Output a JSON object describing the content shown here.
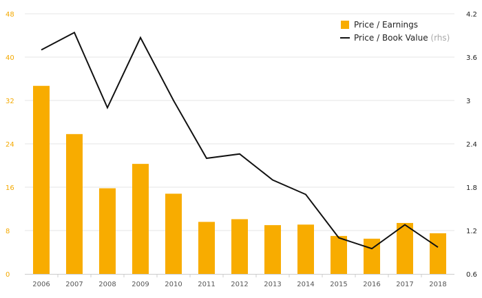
{
  "chart_data": {
    "type": "bar",
    "categories": [
      "2006",
      "2007",
      "2008",
      "2009",
      "2010",
      "2011",
      "2012",
      "2013",
      "2014",
      "2015",
      "2016",
      "2017",
      "2018"
    ],
    "series": [
      {
        "name": "Price / Earnings",
        "chart_type": "bar",
        "axis": "left",
        "color": "#f8ac00",
        "values": [
          34.7,
          25.8,
          15.8,
          20.3,
          14.8,
          9.6,
          10.1,
          9.0,
          9.1,
          7.0,
          6.5,
          9.4,
          7.5
        ]
      },
      {
        "name": "Price / Book Value",
        "name_suffix": "(rhs)",
        "chart_type": "line",
        "axis": "right",
        "color": "#111111",
        "values": [
          3.7,
          3.94,
          2.9,
          3.87,
          3.0,
          2.2,
          2.26,
          1.9,
          1.7,
          1.1,
          0.95,
          1.28,
          0.97
        ]
      }
    ],
    "y_left": {
      "ylim": [
        0,
        48
      ],
      "ticks": [
        "0",
        "8",
        "16",
        "24",
        "32",
        "40",
        "48"
      ],
      "color": "#f4a900"
    },
    "y_right": {
      "ylim": [
        0.6,
        4.2
      ],
      "ticks": [
        "0.6",
        "1.2",
        "1.8",
        "2.4",
        "3",
        "3.6",
        "4.2"
      ],
      "color": "#222222"
    },
    "grid": true,
    "legend": "top-right"
  }
}
